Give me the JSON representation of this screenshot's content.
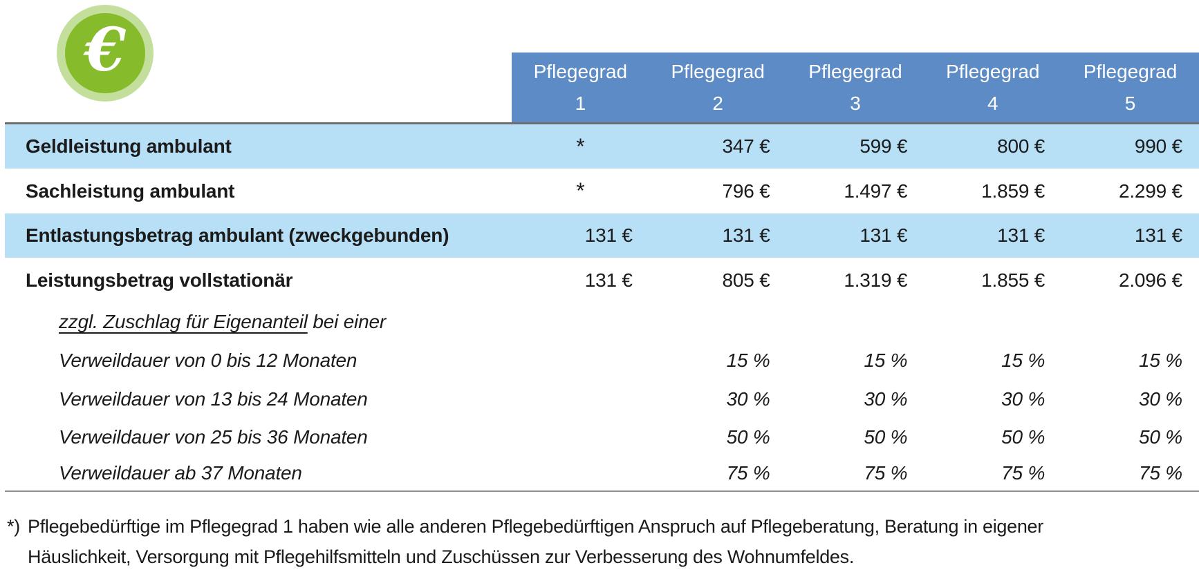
{
  "icon": {
    "glyph": "€",
    "outer_color": "#c4de9b",
    "inner_color": "#86bb2b"
  },
  "table": {
    "header": {
      "label": "Pflegegrad",
      "columns": [
        "1",
        "2",
        "3",
        "4",
        "5"
      ]
    },
    "rows": [
      {
        "label": "Geldleistung ambulant",
        "values": [
          "*",
          "347 €",
          "599 €",
          "800 €",
          "990 €"
        ]
      },
      {
        "label": "Sachleistung ambulant",
        "values": [
          "*",
          "796 €",
          "1.497 €",
          "1.859 €",
          "2.299 €"
        ]
      },
      {
        "label": "Entlastungsbetrag ambulant (zweckgebunden)",
        "values": [
          "131 €",
          "131 €",
          "131 €",
          "131 €",
          "131 €"
        ]
      },
      {
        "label": "Leistungsbetrag vollstationär",
        "values": [
          "131 €",
          "805 €",
          "1.319 €",
          "1.855 €",
          "2.096 €"
        ]
      },
      {
        "label_u": "zzgl. Zuschlag für Eigenanteil",
        "label_rest": " bei einer"
      },
      {
        "label": "Verweildauer von 0 bis 12 Monaten",
        "values": [
          "",
          "15 %",
          "15 %",
          "15 %",
          "15 %"
        ]
      },
      {
        "label": "Verweildauer von 13 bis 24 Monaten",
        "values": [
          "",
          "30 %",
          "30 %",
          "30 %",
          "30 %"
        ]
      },
      {
        "label": "Verweildauer von 25 bis 36 Monaten",
        "values": [
          "",
          "50 %",
          "50 %",
          "50 %",
          "50 %"
        ]
      },
      {
        "label": "Verweildauer ab 37 Monaten",
        "values": [
          "",
          "75 %",
          "75 %",
          "75 %",
          "75 %"
        ]
      }
    ],
    "footnote": {
      "marker": "*)",
      "line1": "Pflegebedürftige im Pflegegrad 1 haben wie alle anderen Pflegebedürftigen Anspruch auf Pflegeberatung, Beratung in eigener",
      "line2": "Häuslichkeit, Versorgung mit Pflegehilfsmitteln und Zuschüssen zur Verbesserung des Wohnumfeldes."
    }
  }
}
